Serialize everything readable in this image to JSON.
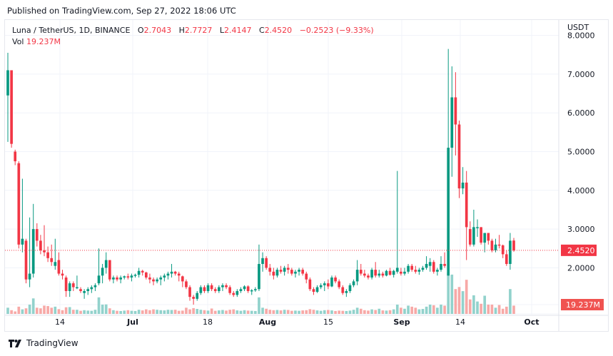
{
  "header": {
    "published": "Published on TradingView.com, Sep 27, 2022 18:06 UTC"
  },
  "legend": {
    "symbol": "Luna / TetherUS, 1D, BINANCE",
    "open_label": "O",
    "open": "2.7043",
    "high_label": "H",
    "high": "2.7727",
    "low_label": "L",
    "low": "2.4147",
    "close_label": "C",
    "close": "2.4520",
    "change": "−0.2523 (−9.33%)",
    "vol_label": "Vol",
    "vol": "19.237M"
  },
  "price_axis": {
    "currency": "USDT",
    "last_price_label": "2.4520",
    "last_volume_label": "19.237M"
  },
  "footer": {
    "brand": "TradingView"
  },
  "colors": {
    "up": "#089981",
    "down": "#f23645",
    "up_volume": "#92d2cc",
    "down_volume": "#f7a9a7",
    "grid": "#f0f3fa",
    "axis_text": "#131722"
  },
  "chart_data": {
    "type": "candlestick",
    "title": "Luna / TetherUS, 1D, BINANCE",
    "ylabel": "USDT",
    "ylim": [
      0.55,
      8.0
    ],
    "y_ticks": [
      "8.0000",
      "7.0000",
      "6.0000",
      "5.0000",
      "4.0000",
      "3.0000",
      "2.0000"
    ],
    "x_ticks": [
      "14",
      "Jul",
      "18",
      "Aug",
      "15",
      "Sep",
      "14",
      "Oct"
    ],
    "grid": true,
    "last_price": 2.452,
    "last_volume": "19.237M",
    "candles": [
      {
        "o": 6.45,
        "h": 7.55,
        "l": 5.25,
        "c": 7.1,
        "v": 3.0
      },
      {
        "o": 7.1,
        "h": 7.1,
        "l": 5.1,
        "c": 5.2,
        "v": 1.8
      },
      {
        "o": 5.0,
        "h": 5.05,
        "l": 4.65,
        "c": 4.75,
        "v": 1.2
      },
      {
        "o": 4.7,
        "h": 4.75,
        "l": 2.5,
        "c": 2.6,
        "v": 3.5
      },
      {
        "o": 2.6,
        "h": 4.3,
        "l": 2.4,
        "c": 2.75,
        "v": 2.2
      },
      {
        "o": 2.7,
        "h": 2.75,
        "l": 1.6,
        "c": 1.7,
        "v": 2.7
      },
      {
        "o": 1.7,
        "h": 3.3,
        "l": 1.5,
        "c": 1.85,
        "v": 4.5
      },
      {
        "o": 1.85,
        "h": 3.65,
        "l": 1.75,
        "c": 3.0,
        "v": 7.5
      },
      {
        "o": 3.0,
        "h": 3.15,
        "l": 2.55,
        "c": 2.7,
        "v": 3.0
      },
      {
        "o": 2.7,
        "h": 2.85,
        "l": 2.35,
        "c": 2.45,
        "v": 2.7
      },
      {
        "o": 2.45,
        "h": 3.1,
        "l": 2.3,
        "c": 2.4,
        "v": 4.0
      },
      {
        "o": 2.4,
        "h": 2.55,
        "l": 2.15,
        "c": 2.25,
        "v": 3.8
      },
      {
        "o": 2.25,
        "h": 2.6,
        "l": 2.05,
        "c": 2.15,
        "v": 3.0
      },
      {
        "o": 2.05,
        "h": 2.75,
        "l": 1.95,
        "c": 2.15,
        "v": 3.5
      },
      {
        "o": 2.2,
        "h": 2.4,
        "l": 1.8,
        "c": 1.85,
        "v": 2.3
      },
      {
        "o": 1.85,
        "h": 1.95,
        "l": 1.7,
        "c": 1.8,
        "v": 1.8
      },
      {
        "o": 1.75,
        "h": 1.8,
        "l": 1.25,
        "c": 1.4,
        "v": 3.2
      },
      {
        "o": 1.4,
        "h": 1.65,
        "l": 1.25,
        "c": 1.6,
        "v": 3.3
      },
      {
        "o": 1.6,
        "h": 1.65,
        "l": 1.4,
        "c": 1.5,
        "v": 2.0
      },
      {
        "o": 1.5,
        "h": 1.8,
        "l": 1.45,
        "c": 1.5,
        "v": 2.0
      },
      {
        "o": 1.45,
        "h": 1.5,
        "l": 1.35,
        "c": 1.4,
        "v": 1.5
      },
      {
        "o": 1.35,
        "h": 1.45,
        "l": 1.2,
        "c": 1.4,
        "v": 1.8
      },
      {
        "o": 1.4,
        "h": 1.5,
        "l": 1.3,
        "c": 1.45,
        "v": 1.6
      },
      {
        "o": 1.45,
        "h": 1.55,
        "l": 1.35,
        "c": 1.5,
        "v": 1.5
      },
      {
        "o": 1.5,
        "h": 1.6,
        "l": 1.4,
        "c": 1.55,
        "v": 2.0
      },
      {
        "o": 1.6,
        "h": 2.5,
        "l": 1.55,
        "c": 1.8,
        "v": 8.0
      },
      {
        "o": 1.8,
        "h": 2.1,
        "l": 1.6,
        "c": 2.0,
        "v": 4.5
      },
      {
        "o": 2.0,
        "h": 2.4,
        "l": 1.85,
        "c": 2.2,
        "v": 4.6
      },
      {
        "o": 2.2,
        "h": 2.2,
        "l": 1.65,
        "c": 1.7,
        "v": 2.7
      },
      {
        "o": 1.7,
        "h": 1.8,
        "l": 1.6,
        "c": 1.75,
        "v": 1.8
      },
      {
        "o": 1.75,
        "h": 1.8,
        "l": 1.65,
        "c": 1.7,
        "v": 1.5
      },
      {
        "o": 1.7,
        "h": 1.8,
        "l": 1.6,
        "c": 1.75,
        "v": 1.4
      },
      {
        "o": 1.75,
        "h": 1.8,
        "l": 1.7,
        "c": 1.78,
        "v": 1.6
      },
      {
        "o": 1.78,
        "h": 1.85,
        "l": 1.7,
        "c": 1.75,
        "v": 1.8
      },
      {
        "o": 1.75,
        "h": 1.85,
        "l": 1.65,
        "c": 1.8,
        "v": 1.5
      },
      {
        "o": 1.8,
        "h": 1.85,
        "l": 1.75,
        "c": 1.82,
        "v": 1.4
      },
      {
        "o": 1.82,
        "h": 2.0,
        "l": 1.75,
        "c": 1.92,
        "v": 2.0
      },
      {
        "o": 1.92,
        "h": 1.95,
        "l": 1.8,
        "c": 1.88,
        "v": 1.7
      },
      {
        "o": 1.88,
        "h": 1.9,
        "l": 1.7,
        "c": 1.75,
        "v": 2.2
      },
      {
        "o": 1.75,
        "h": 1.85,
        "l": 1.6,
        "c": 1.7,
        "v": 1.8
      },
      {
        "o": 1.7,
        "h": 1.75,
        "l": 1.55,
        "c": 1.65,
        "v": 2.2
      },
      {
        "o": 1.65,
        "h": 1.75,
        "l": 1.6,
        "c": 1.7,
        "v": 2.0
      },
      {
        "o": 1.7,
        "h": 1.8,
        "l": 1.55,
        "c": 1.75,
        "v": 1.8
      },
      {
        "o": 1.75,
        "h": 1.85,
        "l": 1.65,
        "c": 1.8,
        "v": 1.7
      },
      {
        "o": 1.8,
        "h": 1.9,
        "l": 1.7,
        "c": 1.85,
        "v": 2.0
      },
      {
        "o": 1.85,
        "h": 2.1,
        "l": 1.75,
        "c": 1.9,
        "v": 1.9
      },
      {
        "o": 1.9,
        "h": 1.92,
        "l": 1.8,
        "c": 1.85,
        "v": 2.0
      },
      {
        "o": 1.85,
        "h": 1.9,
        "l": 1.65,
        "c": 1.8,
        "v": 1.5
      },
      {
        "o": 1.78,
        "h": 1.8,
        "l": 1.5,
        "c": 1.65,
        "v": 1.6
      },
      {
        "o": 1.65,
        "h": 1.7,
        "l": 1.45,
        "c": 1.5,
        "v": 3.0
      },
      {
        "o": 1.5,
        "h": 1.55,
        "l": 1.15,
        "c": 1.25,
        "v": 2.2
      },
      {
        "o": 1.25,
        "h": 1.3,
        "l": 1.05,
        "c": 1.2,
        "v": 2.8
      },
      {
        "o": 1.2,
        "h": 1.4,
        "l": 1.15,
        "c": 1.35,
        "v": 2.4
      },
      {
        "o": 1.35,
        "h": 1.55,
        "l": 1.3,
        "c": 1.5,
        "v": 2.0
      },
      {
        "o": 1.5,
        "h": 1.55,
        "l": 1.35,
        "c": 1.4,
        "v": 1.8
      },
      {
        "o": 1.4,
        "h": 1.6,
        "l": 1.35,
        "c": 1.55,
        "v": 1.6
      },
      {
        "o": 1.55,
        "h": 1.6,
        "l": 1.4,
        "c": 1.45,
        "v": 2.6
      },
      {
        "o": 1.45,
        "h": 1.5,
        "l": 1.35,
        "c": 1.4,
        "v": 1.5
      },
      {
        "o": 1.4,
        "h": 1.55,
        "l": 1.35,
        "c": 1.5,
        "v": 1.7
      },
      {
        "o": 1.5,
        "h": 1.6,
        "l": 1.4,
        "c": 1.55,
        "v": 1.9
      },
      {
        "o": 1.55,
        "h": 1.6,
        "l": 1.45,
        "c": 1.5,
        "v": 1.6
      },
      {
        "o": 1.5,
        "h": 1.55,
        "l": 1.3,
        "c": 1.35,
        "v": 2.0
      },
      {
        "o": 1.35,
        "h": 1.4,
        "l": 1.25,
        "c": 1.3,
        "v": 2.2
      },
      {
        "o": 1.3,
        "h": 1.45,
        "l": 1.25,
        "c": 1.4,
        "v": 1.7
      },
      {
        "o": 1.4,
        "h": 1.5,
        "l": 1.35,
        "c": 1.45,
        "v": 1.5
      },
      {
        "o": 1.45,
        "h": 1.55,
        "l": 1.4,
        "c": 1.52,
        "v": 1.8
      },
      {
        "o": 1.52,
        "h": 1.55,
        "l": 1.35,
        "c": 1.4,
        "v": 1.6
      },
      {
        "o": 1.4,
        "h": 1.45,
        "l": 1.3,
        "c": 1.42,
        "v": 1.5
      },
      {
        "o": 1.42,
        "h": 1.5,
        "l": 1.38,
        "c": 1.45,
        "v": 1.4
      },
      {
        "o": 1.45,
        "h": 2.6,
        "l": 1.4,
        "c": 2.1,
        "v": 8.0
      },
      {
        "o": 2.1,
        "h": 2.4,
        "l": 1.9,
        "c": 2.25,
        "v": 3.0
      },
      {
        "o": 2.25,
        "h": 2.3,
        "l": 1.95,
        "c": 2.0,
        "v": 2.5
      },
      {
        "o": 2.0,
        "h": 2.1,
        "l": 1.8,
        "c": 1.9,
        "v": 2.0
      },
      {
        "o": 1.9,
        "h": 2.0,
        "l": 1.7,
        "c": 1.8,
        "v": 1.8
      },
      {
        "o": 1.8,
        "h": 2.0,
        "l": 1.75,
        "c": 1.95,
        "v": 1.9
      },
      {
        "o": 1.95,
        "h": 2.05,
        "l": 1.85,
        "c": 1.9,
        "v": 1.7
      },
      {
        "o": 1.9,
        "h": 2.05,
        "l": 1.8,
        "c": 2.0,
        "v": 2.0
      },
      {
        "o": 2.0,
        "h": 2.1,
        "l": 1.85,
        "c": 1.95,
        "v": 1.9
      },
      {
        "o": 1.95,
        "h": 2.0,
        "l": 1.8,
        "c": 1.85,
        "v": 1.5
      },
      {
        "o": 1.85,
        "h": 1.95,
        "l": 1.75,
        "c": 1.9,
        "v": 1.6
      },
      {
        "o": 1.9,
        "h": 2.0,
        "l": 1.8,
        "c": 1.95,
        "v": 1.5
      },
      {
        "o": 1.95,
        "h": 2.0,
        "l": 1.8,
        "c": 1.85,
        "v": 1.7
      },
      {
        "o": 1.85,
        "h": 1.9,
        "l": 1.6,
        "c": 1.7,
        "v": 1.8
      },
      {
        "o": 1.7,
        "h": 1.75,
        "l": 1.4,
        "c": 1.45,
        "v": 2.3
      },
      {
        "o": 1.45,
        "h": 1.5,
        "l": 1.3,
        "c": 1.38,
        "v": 2.0
      },
      {
        "o": 1.38,
        "h": 1.55,
        "l": 1.35,
        "c": 1.5,
        "v": 1.7
      },
      {
        "o": 1.5,
        "h": 1.6,
        "l": 1.45,
        "c": 1.55,
        "v": 1.5
      },
      {
        "o": 1.55,
        "h": 1.65,
        "l": 1.4,
        "c": 1.6,
        "v": 1.8
      },
      {
        "o": 1.6,
        "h": 1.7,
        "l": 1.45,
        "c": 1.52,
        "v": 1.9
      },
      {
        "o": 1.52,
        "h": 1.8,
        "l": 1.5,
        "c": 1.75,
        "v": 1.7
      },
      {
        "o": 1.75,
        "h": 1.8,
        "l": 1.6,
        "c": 1.65,
        "v": 1.4
      },
      {
        "o": 1.65,
        "h": 1.7,
        "l": 1.45,
        "c": 1.5,
        "v": 1.6
      },
      {
        "o": 1.5,
        "h": 1.55,
        "l": 1.3,
        "c": 1.35,
        "v": 1.5
      },
      {
        "o": 1.35,
        "h": 1.45,
        "l": 1.25,
        "c": 1.4,
        "v": 1.4
      },
      {
        "o": 1.4,
        "h": 1.6,
        "l": 1.35,
        "c": 1.55,
        "v": 1.6
      },
      {
        "o": 1.55,
        "h": 1.7,
        "l": 1.5,
        "c": 1.65,
        "v": 2.0
      },
      {
        "o": 1.65,
        "h": 2.2,
        "l": 1.55,
        "c": 1.95,
        "v": 3.0
      },
      {
        "o": 1.95,
        "h": 2.1,
        "l": 1.8,
        "c": 1.85,
        "v": 2.5
      },
      {
        "o": 1.85,
        "h": 1.95,
        "l": 1.75,
        "c": 1.8,
        "v": 1.8
      },
      {
        "o": 1.8,
        "h": 1.85,
        "l": 1.7,
        "c": 1.75,
        "v": 1.6
      },
      {
        "o": 1.75,
        "h": 2.0,
        "l": 1.7,
        "c": 1.95,
        "v": 2.2
      },
      {
        "o": 1.95,
        "h": 2.15,
        "l": 1.75,
        "c": 1.8,
        "v": 1.9
      },
      {
        "o": 1.8,
        "h": 1.95,
        "l": 1.75,
        "c": 1.85,
        "v": 2.5
      },
      {
        "o": 1.85,
        "h": 1.9,
        "l": 1.75,
        "c": 1.8,
        "v": 1.7
      },
      {
        "o": 1.8,
        "h": 1.95,
        "l": 1.78,
        "c": 1.92,
        "v": 1.6
      },
      {
        "o": 1.92,
        "h": 2.0,
        "l": 1.8,
        "c": 1.82,
        "v": 1.8
      },
      {
        "o": 1.82,
        "h": 1.95,
        "l": 1.75,
        "c": 1.92,
        "v": 2.2
      },
      {
        "o": 1.9,
        "h": 4.5,
        "l": 1.85,
        "c": 2.0,
        "v": 4.5
      },
      {
        "o": 1.9,
        "h": 2.0,
        "l": 1.8,
        "c": 1.85,
        "v": 3.0
      },
      {
        "o": 1.85,
        "h": 2.0,
        "l": 1.8,
        "c": 1.9,
        "v": 2.5
      },
      {
        "o": 1.9,
        "h": 2.1,
        "l": 1.85,
        "c": 2.05,
        "v": 4.0
      },
      {
        "o": 2.05,
        "h": 2.1,
        "l": 1.9,
        "c": 1.95,
        "v": 3.5
      },
      {
        "o": 1.95,
        "h": 2.05,
        "l": 1.85,
        "c": 1.9,
        "v": 3.0
      },
      {
        "o": 1.9,
        "h": 2.0,
        "l": 1.82,
        "c": 1.95,
        "v": 2.2
      },
      {
        "o": 1.95,
        "h": 2.05,
        "l": 1.9,
        "c": 2.0,
        "v": 2.4
      },
      {
        "o": 2.0,
        "h": 2.3,
        "l": 1.95,
        "c": 2.1,
        "v": 3.5
      },
      {
        "o": 2.05,
        "h": 2.25,
        "l": 1.9,
        "c": 2.15,
        "v": 4.5
      },
      {
        "o": 2.15,
        "h": 2.2,
        "l": 1.85,
        "c": 1.9,
        "v": 4.2
      },
      {
        "o": 1.9,
        "h": 2.0,
        "l": 1.8,
        "c": 1.95,
        "v": 3.0
      },
      {
        "o": 1.95,
        "h": 2.3,
        "l": 1.9,
        "c": 2.1,
        "v": 4.5
      },
      {
        "o": 2.1,
        "h": 2.4,
        "l": 2.0,
        "c": 2.05,
        "v": 4.0
      },
      {
        "o": 1.8,
        "h": 7.65,
        "l": 1.8,
        "c": 5.1,
        "v": 20.0
      },
      {
        "o": 5.1,
        "h": 7.2,
        "l": 4.35,
        "c": 6.4,
        "v": 19.0
      },
      {
        "o": 6.4,
        "h": 7.05,
        "l": 4.9,
        "c": 5.7,
        "v": 12.0
      },
      {
        "o": 5.7,
        "h": 5.8,
        "l": 3.8,
        "c": 4.05,
        "v": 13.0
      },
      {
        "o": 4.05,
        "h": 4.6,
        "l": 3.9,
        "c": 4.2,
        "v": 11.0
      },
      {
        "o": 4.2,
        "h": 4.5,
        "l": 2.2,
        "c": 3.05,
        "v": 16.5
      },
      {
        "o": 3.0,
        "h": 3.2,
        "l": 2.55,
        "c": 2.6,
        "v": 7.0
      },
      {
        "o": 2.6,
        "h": 3.5,
        "l": 2.55,
        "c": 3.05,
        "v": 9.0
      },
      {
        "o": 3.05,
        "h": 3.25,
        "l": 2.8,
        "c": 3.05,
        "v": 6.0
      },
      {
        "o": 3.05,
        "h": 3.05,
        "l": 2.6,
        "c": 2.65,
        "v": 4.9
      },
      {
        "o": 2.65,
        "h": 2.9,
        "l": 2.4,
        "c": 2.9,
        "v": 8.8
      },
      {
        "o": 2.9,
        "h": 2.9,
        "l": 2.6,
        "c": 2.7,
        "v": 4.5
      },
      {
        "o": 2.7,
        "h": 2.75,
        "l": 2.4,
        "c": 2.45,
        "v": 4.5
      },
      {
        "o": 2.45,
        "h": 2.75,
        "l": 2.4,
        "c": 2.6,
        "v": 3.0
      },
      {
        "o": 2.6,
        "h": 2.85,
        "l": 2.5,
        "c": 2.58,
        "v": 4.3
      },
      {
        "o": 2.58,
        "h": 2.6,
        "l": 2.25,
        "c": 2.35,
        "v": 2.5
      },
      {
        "o": 2.35,
        "h": 2.45,
        "l": 2.05,
        "c": 2.1,
        "v": 3.5
      },
      {
        "o": 2.1,
        "h": 2.9,
        "l": 1.95,
        "c": 2.7,
        "v": 12.0
      },
      {
        "o": 2.7043,
        "h": 2.7727,
        "l": 2.4147,
        "c": 2.452,
        "v": 4.0
      }
    ]
  }
}
